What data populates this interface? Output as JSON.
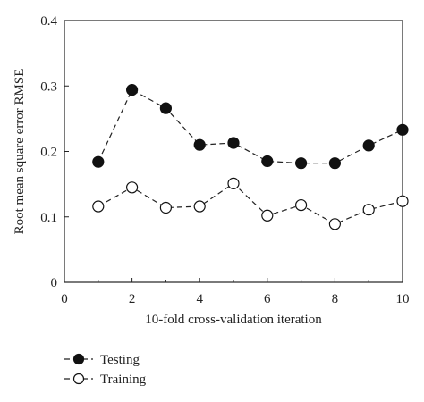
{
  "chart_data": {
    "type": "line",
    "xlabel": "10-fold cross-validation iteration",
    "ylabel": "Root mean square error RMSE",
    "xlim": [
      0,
      10
    ],
    "ylim": [
      0,
      0.4
    ],
    "x_ticks": [
      "0",
      "2",
      "4",
      "6",
      "8",
      "10"
    ],
    "y_ticks": [
      "0",
      "0.1",
      "0.2",
      "0.3",
      "0.4"
    ],
    "grid": false,
    "legend_position": "bottom-left",
    "x": [
      1,
      2,
      3,
      4,
      5,
      6,
      7,
      8,
      9,
      10
    ],
    "series": [
      {
        "name": "Testing",
        "marker": "filled-circle",
        "line_style": "dashed",
        "values": [
          0.184,
          0.294,
          0.266,
          0.21,
          0.213,
          0.185,
          0.182,
          0.182,
          0.209,
          0.233
        ]
      },
      {
        "name": "Training",
        "marker": "open-circle",
        "line_style": "dashed",
        "values": [
          0.116,
          0.145,
          0.114,
          0.116,
          0.151,
          0.102,
          0.118,
          0.089,
          0.111,
          0.124
        ]
      }
    ],
    "colors": {
      "line": "#222222",
      "filled_marker": "#111111",
      "open_marker_fill": "#ffffff"
    }
  }
}
